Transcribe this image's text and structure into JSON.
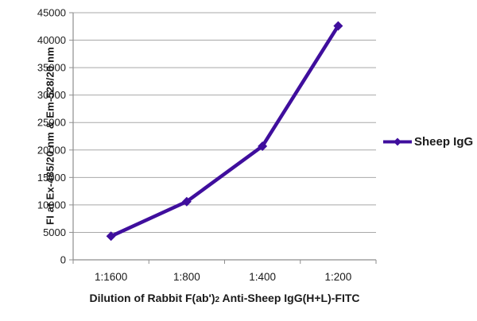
{
  "chart_data": {
    "type": "line",
    "categories": [
      "1:1600",
      "1:800",
      "1:400",
      "1:200"
    ],
    "series": [
      {
        "name": "Sheep IgG",
        "values": [
          4300,
          10600,
          20700,
          42600
        ],
        "color": "#3F0E9D",
        "marker": "diamond"
      }
    ],
    "title": "",
    "xlabel": "Dilution of Rabbit F(ab')2 Anti-Sheep IgG(H+L)-FITC",
    "ylabel": "FI at Ex-485/20 nm & Em-528/20 nm",
    "ylim": [
      0,
      45000
    ],
    "y_ticks": [
      0,
      5000,
      10000,
      15000,
      20000,
      25000,
      30000,
      35000,
      40000,
      45000
    ],
    "grid": "horizontal",
    "legend_position": "right"
  },
  "axes": {
    "y_title": "FI at Ex-485/20 nm & Em-528/20 nm",
    "x_title_prefix": "Dilution of Rabbit F(ab')",
    "x_title_sub": "2",
    "x_title_suffix": " Anti-Sheep IgG(H+L)-FITC"
  },
  "legend": {
    "label": "Sheep IgG"
  },
  "colors": {
    "series": "#3F0E9D",
    "gridline": "#A8A8A8",
    "axis": "#8E8E8E",
    "tick_text": "#1A1A1A"
  }
}
